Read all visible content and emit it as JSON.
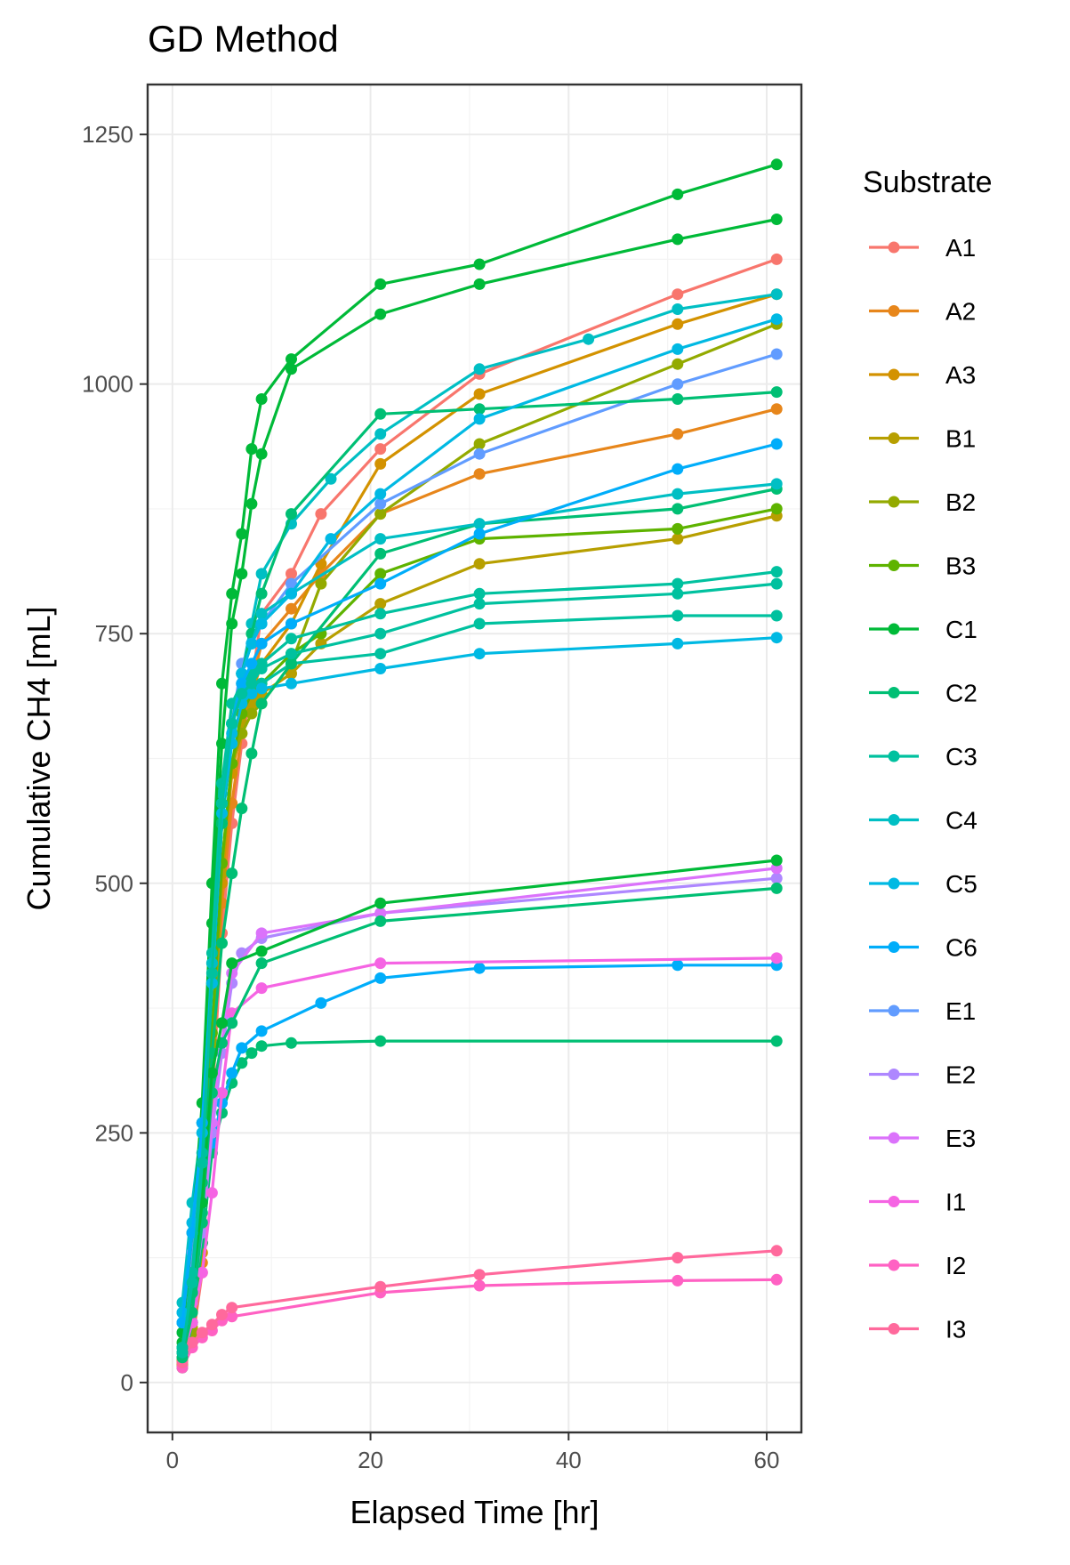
{
  "chart_data": {
    "type": "line",
    "title": "GD Method",
    "xlabel": "Elapsed Time [hr]",
    "ylabel": "Cumulative CH4 [mL]",
    "xlim": [
      -2.5,
      63.5
    ],
    "ylim": [
      -50,
      1300
    ],
    "xticks": [
      0,
      20,
      40,
      60
    ],
    "yticks": [
      0,
      250,
      500,
      750,
      1000,
      1250
    ],
    "grid": true,
    "legend": {
      "title": "Substrate",
      "position": "right"
    },
    "series": [
      {
        "name": "A1",
        "color": "#F8766D",
        "x": [
          1,
          2,
          3,
          4,
          5,
          6,
          7,
          8,
          9,
          12,
          15,
          21,
          31,
          51,
          61
        ],
        "y": [
          15,
          40,
          110,
          280,
          450,
          560,
          640,
          700,
          770,
          810,
          870,
          935,
          1010,
          1090,
          1125
        ]
      },
      {
        "name": "A2",
        "color": "#E7861B",
        "x": [
          1,
          2,
          3,
          4,
          5,
          6,
          7,
          8,
          9,
          12,
          15,
          21,
          31,
          51,
          61
        ],
        "y": [
          18,
          45,
          120,
          300,
          480,
          580,
          650,
          700,
          740,
          775,
          810,
          870,
          910,
          950,
          975
        ]
      },
      {
        "name": "A3",
        "color": "#D39200",
        "x": [
          1,
          2,
          3,
          4,
          5,
          6,
          7,
          8,
          9,
          12,
          15,
          21,
          31,
          51,
          61
        ],
        "y": [
          20,
          50,
          130,
          330,
          500,
          610,
          660,
          690,
          720,
          760,
          820,
          920,
          990,
          1060,
          1090
        ]
      },
      {
        "name": "B1",
        "color": "#B79F00",
        "x": [
          1,
          2,
          3,
          4,
          5,
          6,
          7,
          8,
          9,
          12,
          15,
          21,
          31,
          51,
          61
        ],
        "y": [
          22,
          55,
          140,
          330,
          510,
          620,
          660,
          680,
          690,
          710,
          740,
          780,
          820,
          845,
          868
        ]
      },
      {
        "name": "B2",
        "color": "#93AA00",
        "x": [
          1,
          2,
          3,
          4,
          5,
          6,
          7,
          8,
          9,
          12,
          15,
          21,
          31,
          51,
          61
        ],
        "y": [
          20,
          50,
          140,
          340,
          520,
          620,
          650,
          670,
          680,
          720,
          800,
          870,
          940,
          1020,
          1060
        ]
      },
      {
        "name": "B3",
        "color": "#5EB300",
        "x": [
          1,
          2,
          3,
          4,
          5,
          6,
          7,
          8,
          9,
          12,
          15,
          21,
          31,
          51,
          61
        ],
        "y": [
          25,
          60,
          150,
          350,
          520,
          620,
          670,
          690,
          700,
          730,
          750,
          810,
          845,
          855,
          875
        ]
      },
      {
        "name": "C1",
        "color": "#00BA38",
        "x": [
          1,
          2,
          3,
          4,
          5,
          6,
          7,
          8,
          9,
          12,
          21,
          31,
          51,
          61
        ],
        "y": [
          40,
          120,
          260,
          460,
          640,
          760,
          810,
          880,
          930,
          1015,
          1070,
          1100,
          1145,
          1165
        ]
      },
      {
        "name": "C2",
        "color": "#00BF74",
        "x": [
          1,
          2,
          3,
          4,
          5,
          6,
          7,
          8,
          9,
          12,
          21,
          61
        ],
        "y": [
          15,
          60,
          140,
          230,
          270,
          300,
          320,
          330,
          337,
          340,
          342,
          342
        ]
      },
      {
        "name": "C3",
        "color": "#00C19F",
        "x": [
          1,
          2,
          3,
          4,
          5,
          6,
          7,
          8,
          9,
          12,
          21,
          31,
          51,
          61
        ],
        "y": [
          30,
          100,
          220,
          420,
          590,
          660,
          690,
          700,
          700,
          720,
          730,
          760,
          768,
          768
        ]
      },
      {
        "name": "C4",
        "color": "#00BFC4",
        "x": [
          1,
          2,
          3,
          4,
          5,
          6,
          7,
          8,
          9,
          12,
          16,
          21,
          31,
          42,
          51,
          61
        ],
        "y": [
          80,
          180,
          260,
          400,
          560,
          660,
          710,
          760,
          810,
          860,
          905,
          950,
          1015,
          1045,
          1075,
          1090
        ]
      },
      {
        "name": "C5",
        "color": "#00B9E3",
        "x": [
          1,
          2,
          3,
          4,
          5,
          6,
          7,
          8,
          9,
          12,
          21,
          31,
          51,
          61
        ],
        "y": [
          70,
          160,
          250,
          400,
          560,
          640,
          680,
          690,
          695,
          700,
          715,
          730,
          740,
          746
        ]
      },
      {
        "name": "C6",
        "color": "#00ADFA",
        "x": [
          1,
          2,
          3,
          4,
          5,
          6,
          7,
          9,
          15,
          21,
          31,
          51,
          61
        ],
        "y": [
          60,
          120,
          190,
          240,
          280,
          310,
          335,
          352,
          380,
          405,
          415,
          418,
          418
        ]
      },
      {
        "name": "E1",
        "color": "#619CFF",
        "x": [
          1,
          2,
          3,
          4,
          5,
          6,
          7,
          8,
          9,
          12,
          21,
          31,
          51,
          61
        ],
        "y": [
          50,
          130,
          230,
          400,
          560,
          660,
          720,
          740,
          760,
          800,
          880,
          930,
          1000,
          1030
        ]
      },
      {
        "name": "E2",
        "color": "#AE87FF",
        "x": [
          1,
          2,
          3,
          4,
          5,
          6,
          7,
          9,
          21,
          61
        ],
        "y": [
          30,
          80,
          150,
          250,
          330,
          400,
          430,
          445,
          470,
          505
        ]
      },
      {
        "name": "E3",
        "color": "#DB72FB",
        "x": [
          1,
          2,
          3,
          4,
          5,
          6,
          9,
          21,
          61
        ],
        "y": [
          35,
          90,
          160,
          260,
          340,
          410,
          450,
          470,
          515
        ]
      },
      {
        "name": "I1",
        "color": "#F564E3",
        "x": [
          1,
          2,
          3,
          4,
          5,
          6,
          9,
          21,
          61
        ],
        "y": [
          25,
          60,
          110,
          190,
          290,
          370,
          395,
          420,
          425
        ]
      },
      {
        "name": "I2",
        "color": "#FF61C3",
        "x": [
          1,
          2,
          3,
          4,
          5,
          6,
          21,
          31,
          51,
          61
        ],
        "y": [
          15,
          35,
          45,
          52,
          62,
          66,
          90,
          97,
          102,
          103
        ]
      },
      {
        "name": "I3",
        "color": "#FF699C",
        "x": [
          1,
          2,
          3,
          4,
          5,
          6,
          21,
          31,
          51,
          61
        ],
        "y": [
          20,
          40,
          50,
          58,
          68,
          75,
          96,
          108,
          125,
          132
        ]
      },
      {
        "name": "",
        "color": "#00BA38",
        "x": [
          1,
          2,
          3,
          4,
          5,
          6,
          7,
          8,
          9,
          12,
          21,
          31,
          51,
          61
        ],
        "y": [
          50,
          150,
          280,
          500,
          700,
          790,
          850,
          935,
          985,
          1025,
          1100,
          1120,
          1190,
          1220
        ]
      },
      {
        "name": "",
        "color": "#00BF74",
        "x": [
          1,
          2,
          3,
          4,
          5,
          6,
          7,
          8,
          9,
          12,
          21,
          31,
          51,
          61
        ],
        "y": [
          30,
          90,
          200,
          400,
          560,
          660,
          710,
          750,
          790,
          870,
          970,
          975,
          985,
          992
        ]
      },
      {
        "name": "",
        "color": "#00BF74",
        "x": [
          1,
          2,
          3,
          4,
          5,
          6,
          7,
          8,
          9,
          12,
          21,
          31,
          51,
          61
        ],
        "y": [
          25,
          70,
          160,
          330,
          440,
          510,
          575,
          630,
          680,
          720,
          830,
          860,
          875,
          895
        ]
      },
      {
        "name": "",
        "color": "#00BF74",
        "x": [
          1,
          2,
          3,
          4,
          5,
          6,
          9,
          21,
          61
        ],
        "y": [
          30,
          90,
          170,
          290,
          340,
          360,
          420,
          462,
          495
        ]
      },
      {
        "name": "",
        "color": "#00BA38",
        "x": [
          1,
          2,
          3,
          4,
          5,
          6,
          9,
          21,
          61
        ],
        "y": [
          35,
          100,
          180,
          310,
          360,
          420,
          432,
          480,
          523
        ]
      },
      {
        "name": "",
        "color": "#00C19F",
        "x": [
          1,
          2,
          3,
          4,
          5,
          6,
          7,
          8,
          9,
          12,
          21,
          31,
          51,
          61
        ],
        "y": [
          35,
          110,
          230,
          430,
          600,
          680,
          700,
          710,
          720,
          745,
          770,
          790,
          800,
          812
        ]
      },
      {
        "name": "",
        "color": "#00BFC4",
        "x": [
          1,
          2,
          3,
          4,
          5,
          6,
          7,
          8,
          9,
          12,
          21,
          31,
          51,
          61
        ],
        "y": [
          60,
          150,
          250,
          420,
          580,
          660,
          710,
          740,
          770,
          790,
          845,
          860,
          890,
          900
        ]
      },
      {
        "name": "",
        "color": "#00B9E3",
        "x": [
          1,
          2,
          3,
          4,
          5,
          6,
          7,
          8,
          9,
          12,
          16,
          21,
          31,
          51,
          61
        ],
        "y": [
          70,
          160,
          250,
          400,
          570,
          650,
          710,
          740,
          760,
          790,
          845,
          890,
          965,
          1035,
          1065
        ]
      },
      {
        "name": "",
        "color": "#00ADFA",
        "x": [
          1,
          2,
          3,
          4,
          5,
          6,
          7,
          8,
          9,
          12,
          21,
          31,
          51,
          61
        ],
        "y": [
          60,
          150,
          260,
          410,
          580,
          660,
          700,
          720,
          740,
          760,
          800,
          850,
          915,
          940
        ]
      },
      {
        "name": "",
        "color": "#00C19F",
        "x": [
          1,
          2,
          3,
          4,
          5,
          6,
          7,
          8,
          9,
          12,
          21,
          31,
          51,
          61
        ],
        "y": [
          30,
          100,
          220,
          410,
          580,
          660,
          690,
          700,
          715,
          730,
          750,
          780,
          790,
          800
        ]
      }
    ]
  }
}
